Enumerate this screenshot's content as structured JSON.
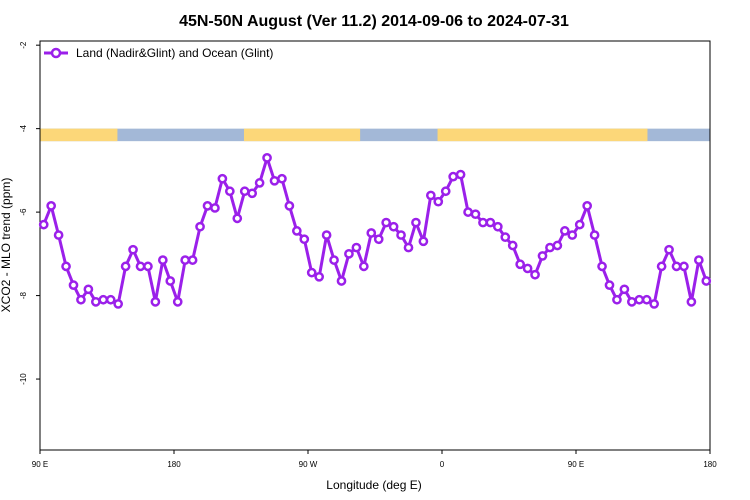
{
  "colors": {
    "series": "#9b20ea",
    "land": "#fcd779",
    "ocean": "#a3b8d7",
    "axis": "#000000",
    "background": "#ffffff"
  },
  "chart_data": {
    "type": "line",
    "title": "45N-50N August (Ver 11.2)   2014-09-06 to 2024-07-31",
    "xlabel": "Longitude (deg E)",
    "ylabel": "XCO2 - MLO trend (ppm)",
    "x_unit": "degrees east, running continuously from 90 E through 180 and 360 to 450 (= 90 E) and 540 (= 180)",
    "xlim": [
      90,
      540
    ],
    "ylim": [
      -11.7,
      -1.9
    ],
    "x_ticks": [
      {
        "value": 90,
        "label": "90 E"
      },
      {
        "value": 180,
        "label": "180"
      },
      {
        "value": 270,
        "label": "90 W"
      },
      {
        "value": 360,
        "label": "0"
      },
      {
        "value": 450,
        "label": "90 E"
      },
      {
        "value": 540,
        "label": "180"
      }
    ],
    "y_ticks": [
      {
        "value": -2,
        "label": "-2"
      },
      {
        "value": -4,
        "label": "-4"
      },
      {
        "value": -6,
        "label": "-6"
      },
      {
        "value": -8,
        "label": "-8"
      },
      {
        "value": -10,
        "label": "-10"
      }
    ],
    "grid": false,
    "legend": "top-left",
    "map_strip": {
      "y_range": [
        -4.3,
        -4.0
      ],
      "land_longitude_ranges": [
        [
          90,
          142
        ],
        [
          227,
          305
        ],
        [
          357,
          498
        ]
      ]
    },
    "series": [
      {
        "name": "Land (Nadir&Glint) and Ocean (Glint)",
        "marker": "open-circle",
        "x": [
          92.5,
          97.5,
          102.5,
          107.5,
          112.5,
          117.5,
          122.5,
          127.5,
          132.5,
          137.5,
          142.5,
          147.5,
          152.5,
          157.5,
          162.5,
          167.5,
          172.5,
          177.5,
          182.5,
          187.5,
          192.5,
          197.5,
          202.5,
          207.5,
          212.5,
          217.5,
          222.5,
          227.5,
          232.5,
          237.5,
          242.5,
          247.5,
          252.5,
          257.5,
          262.5,
          267.5,
          272.5,
          277.5,
          282.5,
          287.5,
          292.5,
          297.5,
          302.5,
          307.5,
          312.5,
          317.5,
          322.5,
          327.5,
          332.5,
          337.5,
          342.5,
          347.5,
          352.5,
          357.5,
          362.5,
          367.5,
          372.5,
          377.5,
          382.5,
          387.5,
          392.5,
          397.5,
          402.5,
          407.5,
          412.5,
          417.5,
          422.5,
          427.5,
          432.5,
          437.5,
          442.5,
          447.5,
          452.5,
          457.5,
          462.5,
          467.5,
          472.5,
          477.5,
          482.5,
          487.5,
          492.5,
          497.5,
          502.5,
          507.5,
          512.5,
          517.5,
          522.5,
          527.5,
          532.5,
          537.5
        ],
        "y": [
          -6.3,
          -5.85,
          -6.55,
          -7.3,
          -7.75,
          -8.1,
          -7.85,
          -8.15,
          -8.1,
          -8.1,
          -8.2,
          -7.3,
          -6.9,
          -7.3,
          -7.3,
          -8.15,
          -7.15,
          -7.65,
          -8.15,
          -7.15,
          -7.15,
          -6.35,
          -5.85,
          -5.9,
          -5.2,
          -5.5,
          -6.15,
          -5.5,
          -5.55,
          -5.3,
          -4.7,
          -5.25,
          -5.2,
          -5.85,
          -6.45,
          -6.65,
          -7.45,
          -7.55,
          -6.55,
          -7.15,
          -7.65,
          -7.0,
          -6.85,
          -7.3,
          -6.5,
          -6.65,
          -6.25,
          -6.35,
          -6.55,
          -6.85,
          -6.25,
          -6.7,
          -5.6,
          -5.75,
          -5.5,
          -5.15,
          -5.1,
          -6.0,
          -6.05,
          -6.25,
          -6.25,
          -6.35,
          -6.6,
          -6.8,
          -7.25,
          -7.35,
          -7.5,
          -7.05,
          -6.85,
          -6.8,
          -6.45,
          -6.55,
          -6.3,
          -5.85,
          -6.55,
          -7.3,
          -7.75,
          -8.1,
          -7.85,
          -8.15,
          -8.1,
          -8.1,
          -8.2,
          -7.3,
          -6.9,
          -7.3,
          -7.3,
          -8.15,
          -7.15,
          -7.65
        ]
      }
    ]
  }
}
